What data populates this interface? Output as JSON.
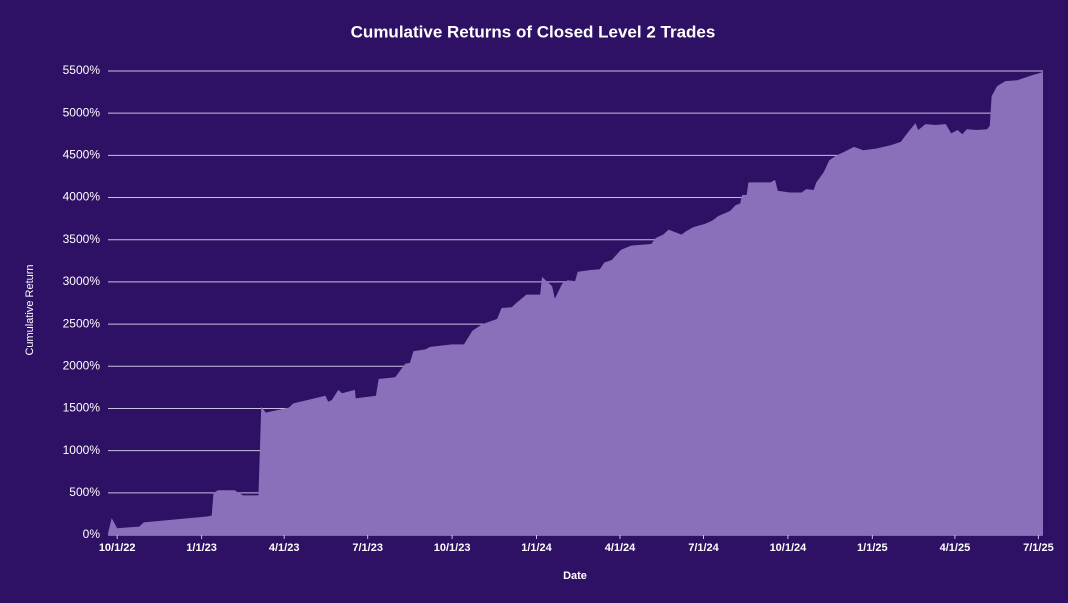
{
  "chart_data": {
    "type": "area",
    "title": "Cumulative Returns of Closed Level 2 Trades",
    "x_label": "Date",
    "y_label": "Cumulative Return",
    "color": "#8a70bb",
    "grid": true,
    "xlim": [
      "2022-09-21",
      "2025-07-06"
    ],
    "xticks": [
      {
        "value": "2022-10-01",
        "label": "10/1/22"
      },
      {
        "value": "2023-01-01",
        "label": "1/1/23"
      },
      {
        "value": "2023-04-01",
        "label": "4/1/23"
      },
      {
        "value": "2023-07-01",
        "label": "7/1/23"
      },
      {
        "value": "2023-10-01",
        "label": "10/1/23"
      },
      {
        "value": "2024-01-01",
        "label": "1/1/24"
      },
      {
        "value": "2024-04-01",
        "label": "4/1/24"
      },
      {
        "value": "2024-07-01",
        "label": "7/1/24"
      },
      {
        "value": "2024-10-01",
        "label": "10/1/24"
      },
      {
        "value": "2025-01-01",
        "label": "1/1/25"
      },
      {
        "value": "2025-04-01",
        "label": "4/1/25"
      },
      {
        "value": "2025-07-01",
        "label": "7/1/25"
      }
    ],
    "ylim": [
      0,
      5500
    ],
    "yticks": [
      {
        "value": 0,
        "label": "0%"
      },
      {
        "value": 500,
        "label": "500%"
      },
      {
        "value": 1000,
        "label": "1000%"
      },
      {
        "value": 1500,
        "label": "1500%"
      },
      {
        "value": 2000,
        "label": "2000%"
      },
      {
        "value": 2500,
        "label": "2500%"
      },
      {
        "value": 3000,
        "label": "3000%"
      },
      {
        "value": 3500,
        "label": "3500%"
      },
      {
        "value": 4000,
        "label": "4000%"
      },
      {
        "value": 4500,
        "label": "4500%"
      },
      {
        "value": 5000,
        "label": "5000%"
      },
      {
        "value": 5500,
        "label": "5500%"
      }
    ],
    "x": [
      "2022-09-21",
      "2022-09-25",
      "2022-10-01",
      "2022-10-25",
      "2022-10-30",
      "2023-01-07",
      "2023-01-12",
      "2023-01-14",
      "2023-01-19",
      "2023-02-06",
      "2023-02-15",
      "2023-03-04",
      "2023-03-07",
      "2023-03-12",
      "2023-04-06",
      "2023-04-11",
      "2023-05-16",
      "2023-05-19",
      "2023-05-23",
      "2023-05-30",
      "2023-06-03",
      "2023-06-17",
      "2023-06-18",
      "2023-07-10",
      "2023-07-13",
      "2023-07-31",
      "2023-08-11",
      "2023-08-16",
      "2023-08-20",
      "2023-09-02",
      "2023-09-07",
      "2023-10-01",
      "2023-10-14",
      "2023-10-23",
      "2023-11-03",
      "2023-11-19",
      "2023-11-24",
      "2023-12-05",
      "2023-12-10",
      "2023-12-21",
      "2024-01-05",
      "2024-01-07",
      "2024-01-18",
      "2024-01-21",
      "2024-01-29",
      "2024-02-04",
      "2024-02-12",
      "2024-02-15",
      "2024-02-28",
      "2024-03-10",
      "2024-03-15",
      "2024-03-23",
      "2024-04-02",
      "2024-04-13",
      "2024-05-05",
      "2024-05-10",
      "2024-05-18",
      "2024-05-24",
      "2024-06-07",
      "2024-06-12",
      "2024-06-20",
      "2024-07-03",
      "2024-07-11",
      "2024-07-17",
      "2024-07-30",
      "2024-08-05",
      "2024-08-10",
      "2024-08-12",
      "2024-08-17",
      "2024-08-19",
      "2024-09-12",
      "2024-09-17",
      "2024-09-20",
      "2024-10-03",
      "2024-10-16",
      "2024-10-21",
      "2024-10-29",
      "2024-11-01",
      "2024-11-09",
      "2024-11-15",
      "2024-11-23",
      "2024-12-01",
      "2024-12-12",
      "2024-12-22",
      "2025-01-05",
      "2025-01-21",
      "2025-02-01",
      "2025-02-10",
      "2025-02-17",
      "2025-02-20",
      "2025-02-28",
      "2025-03-11",
      "2025-03-22",
      "2025-03-28",
      "2025-04-04",
      "2025-04-09",
      "2025-04-14",
      "2025-04-25",
      "2025-05-06",
      "2025-05-09",
      "2025-05-11",
      "2025-05-17",
      "2025-05-26",
      "2025-06-08",
      "2025-06-24",
      "2025-07-01",
      "2025-07-06"
    ],
    "values": [
      20,
      200,
      80,
      100,
      150,
      220,
      230,
      500,
      530,
      530,
      470,
      470,
      1520,
      1450,
      1510,
      1560,
      1650,
      1580,
      1600,
      1720,
      1680,
      1720,
      1620,
      1650,
      1850,
      1870,
      2030,
      2040,
      2180,
      2200,
      2230,
      2260,
      2260,
      2420,
      2500,
      2560,
      2690,
      2700,
      2750,
      2850,
      2850,
      3060,
      2950,
      2800,
      2980,
      3020,
      3010,
      3120,
      3140,
      3150,
      3230,
      3260,
      3380,
      3430,
      3450,
      3520,
      3560,
      3620,
      3560,
      3600,
      3650,
      3690,
      3730,
      3780,
      3840,
      3910,
      3930,
      4030,
      4030,
      4180,
      4180,
      4210,
      4080,
      4060,
      4060,
      4100,
      4090,
      4180,
      4300,
      4440,
      4500,
      4540,
      4600,
      4560,
      4580,
      4620,
      4660,
      4790,
      4880,
      4800,
      4870,
      4860,
      4870,
      4760,
      4800,
      4750,
      4810,
      4800,
      4810,
      4850,
      5200,
      5320,
      5380,
      5390,
      5450,
      5470,
      5490
    ]
  }
}
